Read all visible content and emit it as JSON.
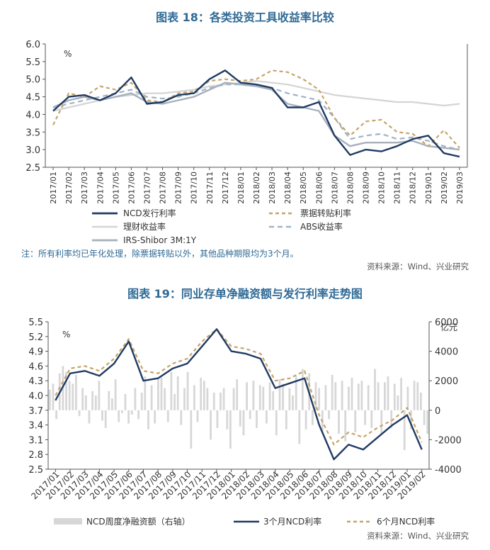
{
  "chart_data": [
    {
      "type": "line",
      "title": "图表 18：各类投资工具收益率比较",
      "ylabel": "%",
      "ylim": [
        2.5,
        6.0
      ],
      "y_ticks": [
        "2.5",
        "3.0",
        "3.5",
        "4.0",
        "4.5",
        "5.0",
        "5.5",
        "6.0"
      ],
      "categories": [
        "2017/01",
        "2017/02",
        "2017/03",
        "2017/04",
        "2017/05",
        "2017/06",
        "2017/07",
        "2017/08",
        "2017/09",
        "2017/10",
        "2017/11",
        "2017/12",
        "2018/01",
        "2018/02",
        "2018/03",
        "2018/04",
        "2018/05",
        "2018/06",
        "2018/07",
        "2018/08",
        "2018/09",
        "2018/10",
        "2018/11",
        "2018/12",
        "2019/01",
        "2019/02",
        "2019/03"
      ],
      "legend_position": "bottom",
      "note": "注：所有利率均已年化处理，除票据转贴以外，其他品种期限均为3个月。",
      "source": "资料来源：Wind、兴业研究",
      "series": [
        {
          "name": "NCD发行利率",
          "color": "#1f3b63",
          "dash": "solid",
          "width": 2.4,
          "values": [
            4.1,
            4.5,
            4.55,
            4.4,
            4.6,
            5.05,
            4.3,
            4.35,
            4.55,
            4.6,
            5.0,
            5.25,
            4.9,
            4.85,
            4.75,
            4.2,
            4.2,
            4.35,
            3.4,
            2.85,
            3.0,
            2.95,
            3.1,
            3.3,
            3.4,
            2.9,
            2.8
          ]
        },
        {
          "name": "票据转贴利率",
          "color": "#c6a46a",
          "dash": "5,4",
          "width": 2.2,
          "values": [
            3.7,
            4.6,
            4.5,
            4.8,
            4.7,
            4.9,
            4.4,
            4.35,
            4.6,
            4.65,
            4.95,
            5.0,
            4.95,
            5.0,
            5.25,
            5.2,
            5.0,
            4.7,
            3.9,
            3.4,
            3.8,
            3.85,
            3.5,
            3.45,
            3.1,
            3.55,
            3.05
          ]
        },
        {
          "name": "理财收益率",
          "color": "#d4d4d4",
          "dash": "solid",
          "width": 2.2,
          "values": [
            4.1,
            4.2,
            4.3,
            4.4,
            4.5,
            4.55,
            4.6,
            4.6,
            4.65,
            4.7,
            4.8,
            4.85,
            4.9,
            4.95,
            4.9,
            4.85,
            4.75,
            4.65,
            4.55,
            4.5,
            4.45,
            4.4,
            4.35,
            4.35,
            4.3,
            4.25,
            4.3
          ]
        },
        {
          "name": "ABS收益率",
          "color": "#9fb3c8",
          "dash": "7,5",
          "width": 2.2,
          "values": [
            4.2,
            4.3,
            4.4,
            4.5,
            4.6,
            4.7,
            4.5,
            4.45,
            4.5,
            4.6,
            4.75,
            4.85,
            4.85,
            4.8,
            4.75,
            4.6,
            4.5,
            4.4,
            3.9,
            3.3,
            3.4,
            3.45,
            3.3,
            3.35,
            3.25,
            3.1,
            3.0
          ]
        },
        {
          "name": "IRS-Shibor 3M:1Y",
          "color": "#a8b0bc",
          "dash": "solid",
          "width": 2.4,
          "values": [
            4.2,
            4.4,
            4.5,
            4.4,
            4.5,
            4.6,
            4.35,
            4.3,
            4.4,
            4.5,
            4.7,
            4.9,
            4.85,
            4.8,
            4.7,
            4.3,
            4.2,
            4.1,
            3.4,
            3.1,
            3.2,
            3.2,
            3.2,
            3.25,
            3.1,
            3.05,
            3.0
          ]
        }
      ]
    },
    {
      "type": "bar+line",
      "title": "图表 19：同业存单净融资额与发行利率走势图",
      "ylabel": "%",
      "ylabel_right": "亿元",
      "ylim": [
        2.5,
        5.5
      ],
      "ylim_right": [
        -4000,
        6000
      ],
      "y_ticks": [
        "2.5",
        "2.8",
        "3.1",
        "3.4",
        "3.7",
        "4.0",
        "4.3",
        "4.6",
        "4.9",
        "5.2",
        "5.5"
      ],
      "y_ticks_right": [
        "-4000",
        "-2000",
        "0",
        "2000",
        "4000",
        "6000"
      ],
      "categories": [
        "2017/01",
        "2017/02",
        "2017/03",
        "2017/04",
        "2017/05",
        "2017/06",
        "2017/07",
        "2017/08",
        "2017/09",
        "2017/10",
        "2017/11",
        "2017/12",
        "2018/01",
        "2018/02",
        "2018/03",
        "2018/04",
        "2018/05",
        "2018/06",
        "2018/07",
        "2018/08",
        "2018/09",
        "2018/10",
        "2018/11",
        "2018/12",
        "2019/01",
        "2019/02"
      ],
      "legend_position": "bottom",
      "source": "资料来源：Wind、兴业研究",
      "bar_series": {
        "name": "NCD周度净融资额（右轴）",
        "color": "#d7d7d7",
        "values": [
          1400,
          1800,
          -600,
          2500,
          3000,
          2600,
          2000,
          1800,
          2400,
          -400,
          1500,
          1000,
          -900,
          1300,
          1000,
          2000,
          -700,
          -1200,
          1300,
          800,
          2100,
          -800,
          -200,
          1100,
          -900,
          -300,
          1500,
          -600,
          1200,
          2300,
          -1300,
          1700,
          -900,
          2100,
          2200,
          1500,
          -800,
          2600,
          1100,
          2300,
          -1000,
          1500,
          2600,
          -2600,
          1700,
          -800,
          2200,
          2000,
          1500,
          -2000,
          1200,
          -1200,
          1200,
          1500,
          -1300,
          -2600,
          1500,
          2100,
          -1100,
          -1700,
          1900,
          -600,
          2000,
          -1200,
          1700,
          1600,
          -900,
          1900,
          1300,
          -1700,
          2100,
          1800,
          -1300,
          1500,
          1000,
          2300,
          -2300,
          2800,
          -1300,
          2500,
          -1000,
          1900,
          1500,
          -1500,
          1700,
          -600,
          2400,
          1900,
          -1600,
          2000,
          -2100,
          1600,
          2200,
          -1500,
          1800,
          2000,
          -1000,
          1700,
          -1200,
          2800,
          1900,
          -1600,
          1900,
          2300,
          -1200,
          1800,
          1000,
          2200,
          -2700,
          1600,
          -1300,
          2000,
          1900,
          1200,
          -1000,
          -1600
        ]
      },
      "series": [
        {
          "name": "3个月NCD利率",
          "color": "#1f3b63",
          "dash": "solid",
          "width": 2.4,
          "values": [
            3.9,
            4.45,
            4.5,
            4.4,
            4.65,
            5.1,
            4.3,
            4.35,
            4.55,
            4.65,
            5.0,
            5.35,
            4.9,
            4.85,
            4.75,
            4.15,
            4.25,
            4.35,
            3.4,
            2.7,
            3.0,
            2.9,
            3.15,
            3.4,
            3.6,
            2.9
          ]
        },
        {
          "name": "6个月NCD利率",
          "color": "#c6a46a",
          "dash": "5,4",
          "width": 2.2,
          "values": [
            4.0,
            4.55,
            4.6,
            4.5,
            4.75,
            5.15,
            4.5,
            4.45,
            4.65,
            4.75,
            5.1,
            5.35,
            5.0,
            4.95,
            4.85,
            4.3,
            4.35,
            4.5,
            3.6,
            3.0,
            3.25,
            3.15,
            3.35,
            3.5,
            3.75,
            3.05
          ]
        }
      ]
    }
  ]
}
